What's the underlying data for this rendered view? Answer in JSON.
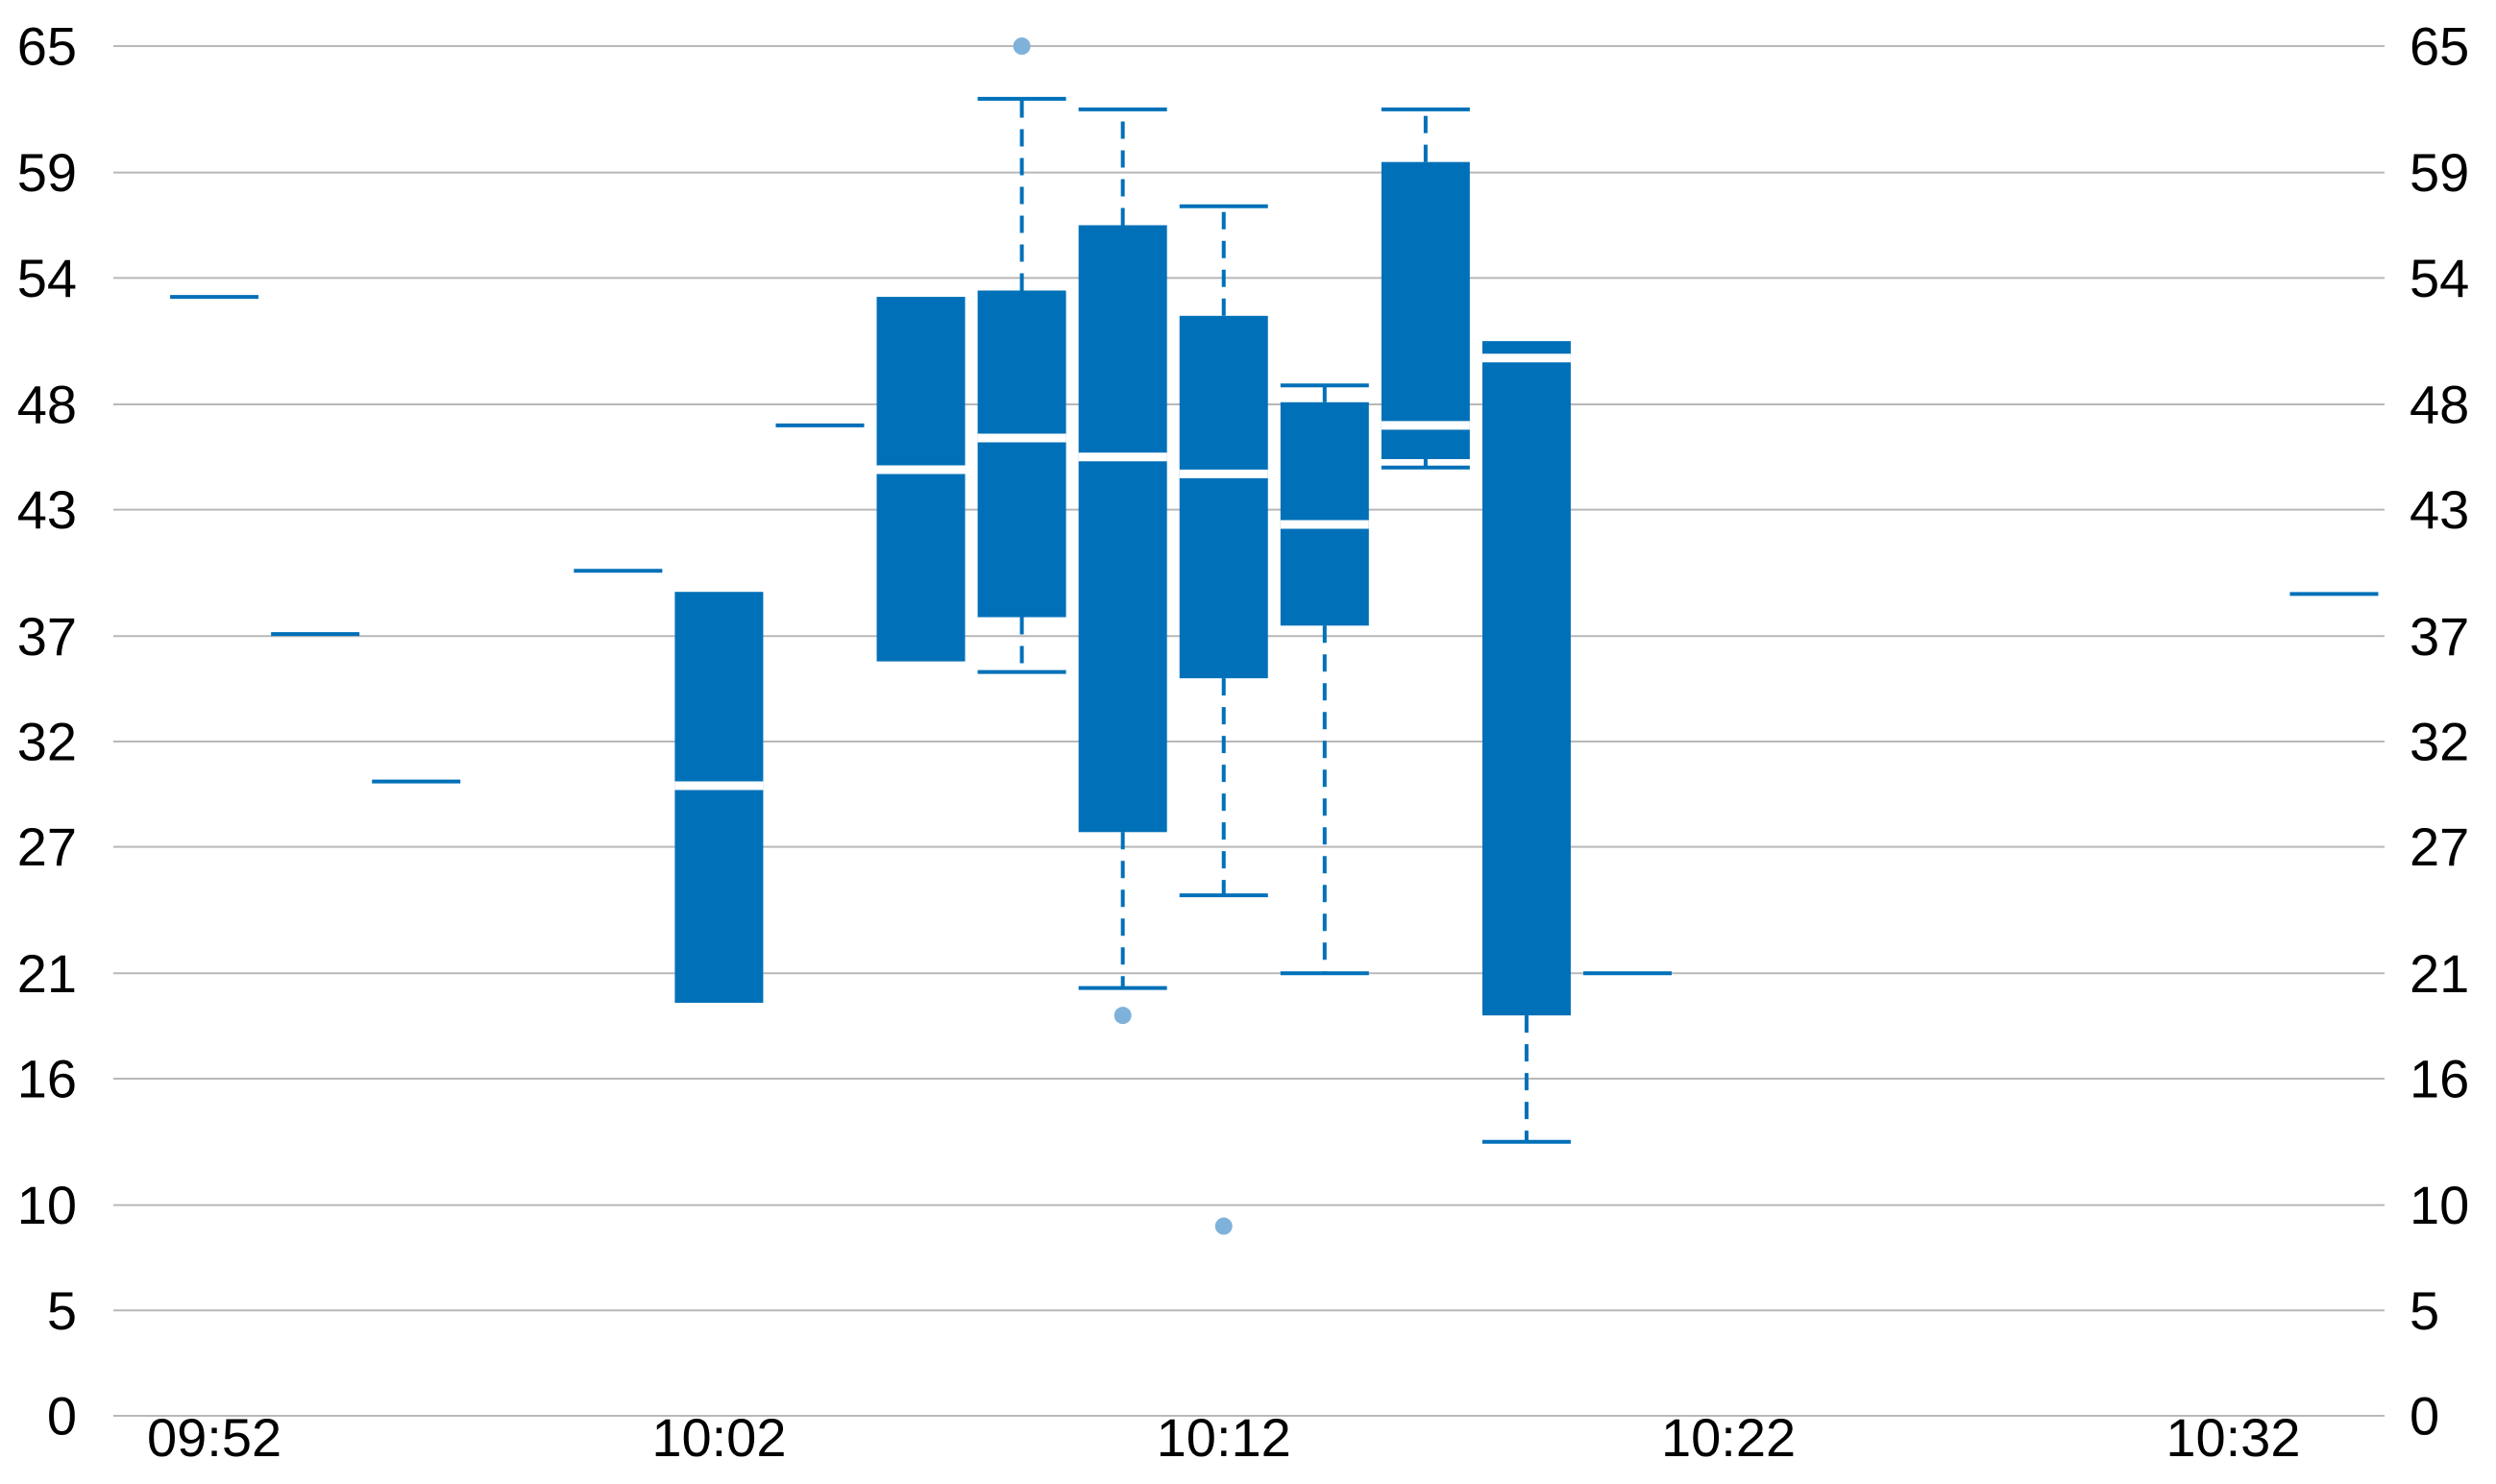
{
  "chart_data": {
    "type": "box",
    "title": "",
    "xlabel": "",
    "ylabel": "",
    "ylim": [
      0,
      65
    ],
    "y_ticks": [
      0,
      5,
      10,
      16,
      21,
      27,
      32,
      37,
      43,
      48,
      54,
      59,
      65
    ],
    "y_tick_labels": [
      "0",
      "5",
      "10",
      "16",
      "21",
      "27",
      "32",
      "37",
      "43",
      "48",
      "54",
      "59",
      "65"
    ],
    "secondary_y_axis": true,
    "grid": true,
    "x_tick_labels": [
      "09:52",
      "10:02",
      "10:12",
      "10:22",
      "10:32"
    ],
    "x_start": "09:50",
    "x_end": "10:35",
    "colors": {
      "box": "#0070b8",
      "outlier": "#7fb2db",
      "grid": "#b8b8b8"
    },
    "series": [
      {
        "x": "09:52",
        "min": 53.1,
        "q1": 53.1,
        "median": 53.1,
        "q3": 53.1,
        "max": 53.1,
        "outliers": []
      },
      {
        "x": "09:54",
        "min": 37.1,
        "q1": 37.1,
        "median": 37.1,
        "q3": 37.1,
        "max": 37.1,
        "outliers": []
      },
      {
        "x": "09:56",
        "min": 30.1,
        "q1": 30.1,
        "median": 30.1,
        "q3": 30.1,
        "max": 30.1,
        "outliers": []
      },
      {
        "x": "10:00",
        "min": 40.1,
        "q1": 40.1,
        "median": 40.1,
        "q3": 40.1,
        "max": 40.1,
        "outliers": []
      },
      {
        "x": "10:02",
        "min": 19.6,
        "q1": 19.6,
        "median": 29.9,
        "q3": 39.1,
        "max": 39.1,
        "outliers": []
      },
      {
        "x": "10:04",
        "min": 47.0,
        "q1": 47.0,
        "median": 47.0,
        "q3": 47.0,
        "max": 47.0,
        "outliers": []
      },
      {
        "x": "10:06",
        "min": 35.8,
        "q1": 35.8,
        "median": 44.9,
        "q3": 53.1,
        "max": 53.1,
        "outliers": []
      },
      {
        "x": "10:08",
        "min": 35.3,
        "q1": 37.9,
        "median": 46.4,
        "q3": 53.4,
        "max": 62.5,
        "outliers": [
          65.0
        ]
      },
      {
        "x": "10:10",
        "min": 20.3,
        "q1": 27.7,
        "median": 45.5,
        "q3": 56.5,
        "max": 62.0,
        "outliers": [
          19.0
        ]
      },
      {
        "x": "10:12",
        "min": 24.7,
        "q1": 35.0,
        "median": 44.7,
        "q3": 52.2,
        "max": 57.4,
        "outliers": [
          9.0
        ]
      },
      {
        "x": "10:14",
        "min": 21.0,
        "q1": 37.5,
        "median": 42.3,
        "q3": 48.1,
        "max": 48.9,
        "outliers": []
      },
      {
        "x": "10:16",
        "min": 45.0,
        "q1": 45.4,
        "median": 47.0,
        "q3": 59.5,
        "max": 62.0,
        "outliers": []
      },
      {
        "x": "10:18",
        "min": 13.0,
        "q1": 19.0,
        "median": 50.2,
        "q3": 51.0,
        "max": 51.0,
        "outliers": []
      },
      {
        "x": "10:20",
        "min": 21.0,
        "q1": 21.0,
        "median": 21.0,
        "q3": 21.0,
        "max": 21.0,
        "outliers": []
      },
      {
        "x": "10:34",
        "min": 39.0,
        "q1": 39.0,
        "median": 39.0,
        "q3": 39.0,
        "max": 39.0,
        "outliers": []
      }
    ]
  }
}
